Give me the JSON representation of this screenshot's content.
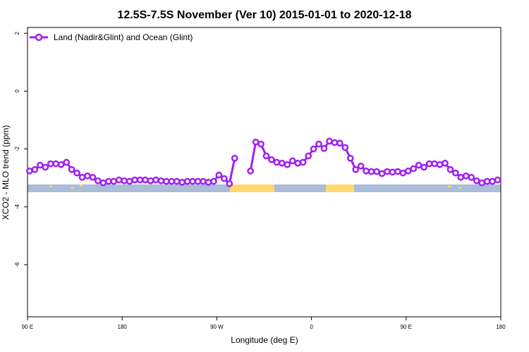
{
  "chart_data": {
    "type": "line",
    "title": "12.5S-7.5S November (Ver 10)   2015-01-01 to 2020-12-18",
    "x_label": "Longitude (deg E)",
    "y_label": "XCO2 - MLO trend (ppm)",
    "xlim": [
      90,
      540
    ],
    "ylim": [
      -7.8,
      2.2
    ],
    "xticks": [
      {
        "value": 90,
        "label": "90 E"
      },
      {
        "value": 180,
        "label": "180"
      },
      {
        "value": 270,
        "label": "90 W"
      },
      {
        "value": 360,
        "label": "0"
      },
      {
        "value": 450,
        "label": "90 E"
      },
      {
        "value": 540,
        "label": "180"
      }
    ],
    "yticks": [
      2,
      0,
      -2,
      -4,
      -6
    ],
    "legend": "top-left",
    "x": [
      92,
      97,
      102,
      107,
      112,
      117,
      122,
      127,
      132,
      137,
      142,
      147,
      152,
      157,
      162,
      167,
      172,
      177,
      182,
      187,
      192,
      197,
      202,
      207,
      212,
      217,
      222,
      227,
      232,
      237,
      242,
      247,
      252,
      257,
      262,
      267,
      272,
      277,
      282,
      287,
      292,
      297,
      302,
      307,
      312,
      317,
      322,
      327,
      332,
      337,
      342,
      347,
      352,
      357,
      362,
      367,
      372,
      377,
      382,
      387,
      392,
      397,
      402,
      407,
      412,
      417,
      422,
      427,
      432,
      437,
      442,
      447,
      452,
      457,
      462,
      467,
      472,
      477,
      482,
      487,
      492,
      497,
      502,
      507,
      512,
      517,
      522,
      527,
      532,
      537
    ],
    "series": [
      {
        "name": "Land (Nadir&Glint) and Ocean (Glint)",
        "color": "#a020f0",
        "values": [
          -2.76,
          -2.71,
          -2.56,
          -2.63,
          -2.51,
          -2.51,
          -2.54,
          -2.46,
          -2.71,
          -2.83,
          -2.98,
          -2.93,
          -2.98,
          -3.1,
          -3.17,
          -3.12,
          -3.12,
          -3.07,
          -3.1,
          -3.12,
          -3.07,
          -3.07,
          -3.07,
          -3.1,
          -3.07,
          -3.1,
          -3.12,
          -3.12,
          -3.12,
          -3.15,
          -3.12,
          -3.12,
          -3.12,
          -3.12,
          -3.15,
          -3.12,
          -2.9,
          -3.02,
          -3.2,
          -2.32,
          null,
          null,
          -2.76,
          -1.76,
          -1.83,
          -2.24,
          -2.37,
          -2.46,
          -2.49,
          -2.54,
          -2.41,
          -2.49,
          -2.46,
          -2.24,
          -2.0,
          -1.83,
          -1.98,
          -1.73,
          -1.78,
          -1.8,
          -1.95,
          -2.32,
          -2.71,
          -2.59,
          -2.76,
          -2.78,
          -2.78,
          -2.85,
          -2.78,
          -2.8,
          -2.78,
          -2.83,
          -2.76,
          -2.68,
          -2.56,
          -2.63,
          -2.51,
          -2.51,
          -2.54,
          -2.49,
          -2.71,
          -2.83,
          -2.98,
          -2.93,
          -2.98,
          -3.1,
          -3.17,
          -3.12,
          -3.12,
          -3.07
        ]
      }
    ]
  }
}
